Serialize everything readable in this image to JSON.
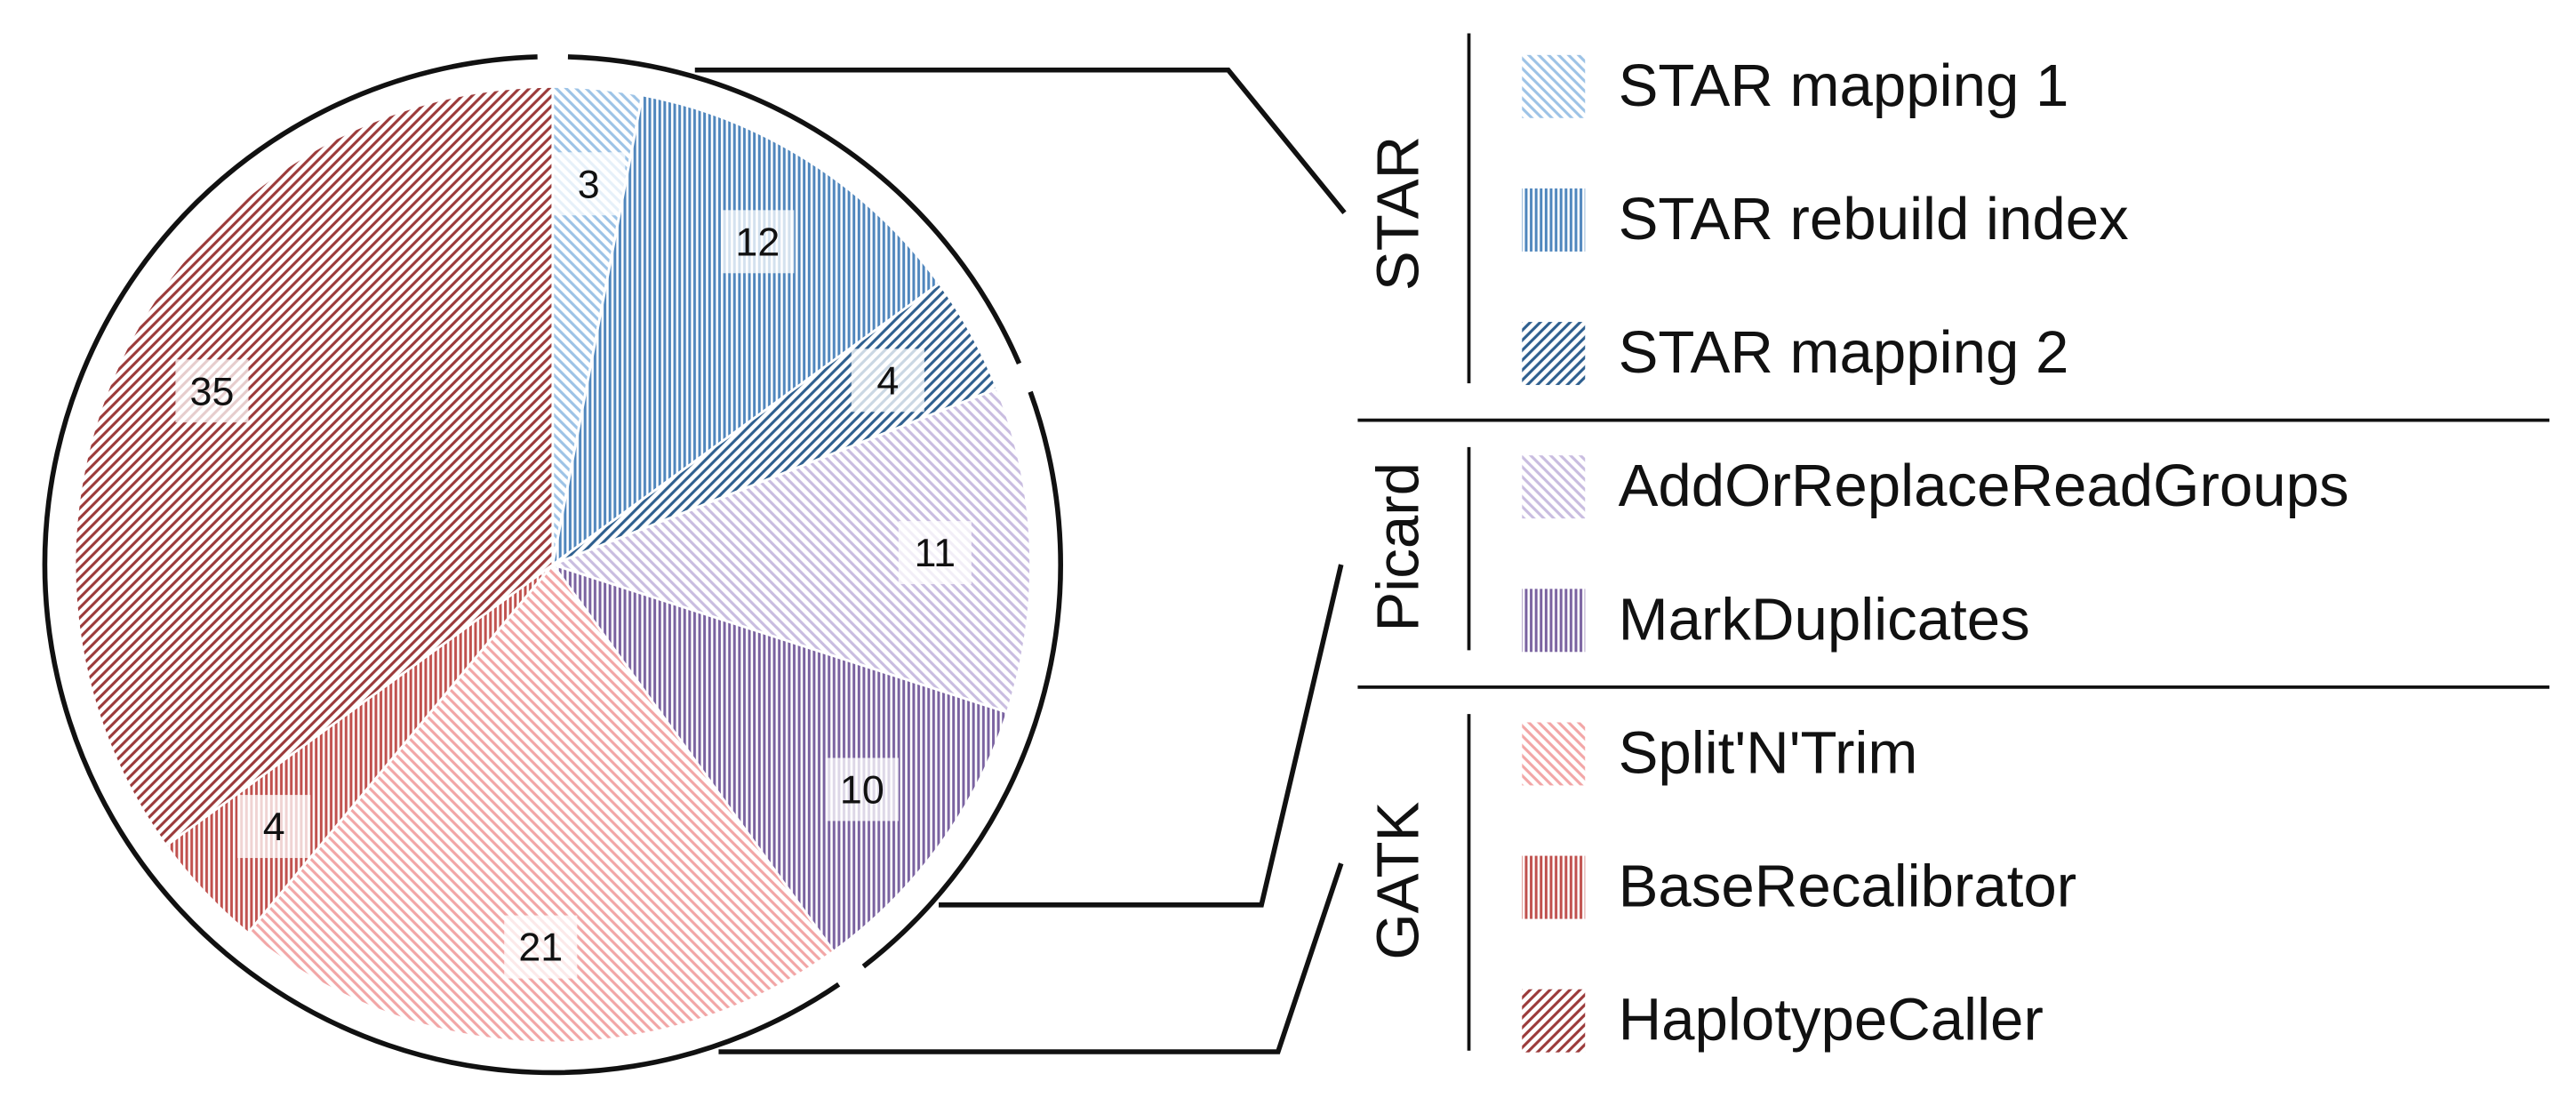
{
  "chart_data": {
    "type": "pie",
    "series": [
      {
        "name": "STAR mapping 1",
        "group": "STAR",
        "value": 3,
        "color": "#9dc3e6",
        "hatch": "diagonal-down"
      },
      {
        "name": "STAR rebuild index",
        "group": "STAR",
        "value": 12,
        "color": "#4f86bd",
        "hatch": "vertical"
      },
      {
        "name": "STAR mapping 2",
        "group": "STAR",
        "value": 4,
        "color": "#2e5f8f",
        "hatch": "diagonal-up"
      },
      {
        "name": "AddOrReplaceReadGroups",
        "group": "Picard",
        "value": 11,
        "color": "#c9bde0",
        "hatch": "diagonal-down"
      },
      {
        "name": "MarkDuplicates",
        "group": "Picard",
        "value": 10,
        "color": "#7a62a0",
        "hatch": "vertical"
      },
      {
        "name": "Split'N'Trim",
        "group": "GATK",
        "value": 21,
        "color": "#f2a6a6",
        "hatch": "diagonal-down"
      },
      {
        "name": "BaseRecalibrator",
        "group": "GATK",
        "value": 4,
        "color": "#c0504d",
        "hatch": "vertical"
      },
      {
        "name": "HaplotypeCaller",
        "group": "GATK",
        "value": 35,
        "color": "#9b3a3a",
        "hatch": "diagonal-up"
      }
    ]
  }
}
